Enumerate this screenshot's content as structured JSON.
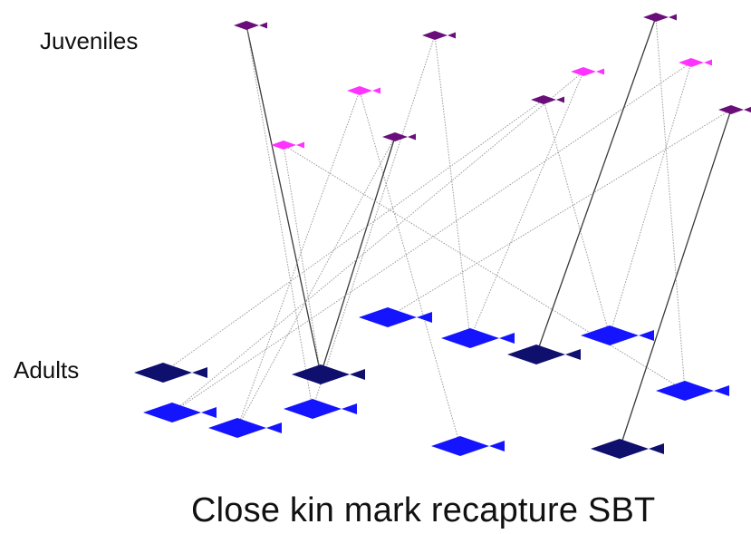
{
  "labels": {
    "juveniles": "Juveniles",
    "adults": "Adults",
    "caption": "Close kin mark recapture SBT"
  },
  "colors": {
    "juvenile_dark": "#6a0f7a",
    "juvenile_light": "#ff33ff",
    "adult_dark": "#0f0f6e",
    "adult_light": "#1414ff",
    "link_strong": "#3a3a3a",
    "link_weak": "#9a9a9a"
  },
  "icons": {
    "fish": "fish-icon"
  },
  "juveniles": [
    {
      "id": "j1",
      "tone": "dark"
    },
    {
      "id": "j2",
      "tone": "dark"
    },
    {
      "id": "j3",
      "tone": "light"
    },
    {
      "id": "j4",
      "tone": "dark"
    },
    {
      "id": "j5",
      "tone": "light"
    },
    {
      "id": "j6",
      "tone": "dark"
    },
    {
      "id": "j7",
      "tone": "light"
    },
    {
      "id": "j8",
      "tone": "dark"
    },
    {
      "id": "j9",
      "tone": "light"
    },
    {
      "id": "j10",
      "tone": "dark"
    }
  ],
  "adults": [
    {
      "id": "a1",
      "tone": "light"
    },
    {
      "id": "a2",
      "tone": "light"
    },
    {
      "id": "a3",
      "tone": "dark"
    },
    {
      "id": "a4",
      "tone": "light"
    },
    {
      "id": "a5",
      "tone": "light"
    },
    {
      "id": "a6",
      "tone": "dark"
    },
    {
      "id": "a7",
      "tone": "dark"
    },
    {
      "id": "a8",
      "tone": "light"
    },
    {
      "id": "a9",
      "tone": "light"
    },
    {
      "id": "a10",
      "tone": "light"
    },
    {
      "id": "a11",
      "tone": "light"
    },
    {
      "id": "a12",
      "tone": "dark"
    }
  ],
  "links": [
    {
      "from": "j1",
      "to": "a6",
      "kind": "strong"
    },
    {
      "from": "j1",
      "to": "a4",
      "kind": "weak"
    },
    {
      "from": "j2",
      "to": "a4",
      "kind": "weak"
    },
    {
      "from": "j2",
      "to": "a8",
      "kind": "weak"
    },
    {
      "from": "j3",
      "to": "a10",
      "kind": "weak"
    },
    {
      "from": "j3",
      "to": "a2",
      "kind": "weak"
    },
    {
      "from": "j4",
      "to": "a6",
      "kind": "strong"
    },
    {
      "from": "j4",
      "to": "a2",
      "kind": "weak"
    },
    {
      "from": "j5",
      "to": "a6",
      "kind": "weak"
    },
    {
      "from": "j5",
      "to": "a11",
      "kind": "weak"
    },
    {
      "from": "j6",
      "to": "a9",
      "kind": "weak"
    },
    {
      "from": "j6",
      "to": "a3",
      "kind": "weak"
    },
    {
      "from": "j7",
      "to": "a1",
      "kind": "weak"
    },
    {
      "from": "j7",
      "to": "a8",
      "kind": "weak"
    },
    {
      "from": "j8",
      "to": "a12",
      "kind": "strong"
    },
    {
      "from": "j8",
      "to": "a5",
      "kind": "weak"
    },
    {
      "from": "j9",
      "to": "a1",
      "kind": "weak"
    },
    {
      "from": "j9",
      "to": "a9",
      "kind": "weak"
    },
    {
      "from": "j10",
      "to": "a7",
      "kind": "strong"
    },
    {
      "from": "j10",
      "to": "a11",
      "kind": "weak"
    }
  ]
}
